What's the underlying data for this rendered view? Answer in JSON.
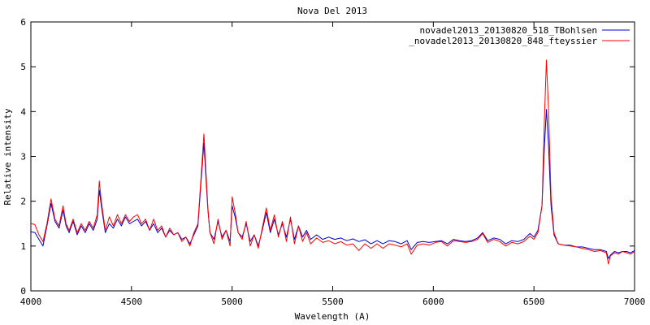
{
  "chart_data": {
    "type": "line",
    "title": "Nova Del 2013",
    "xlabel": "Wavelength (A)",
    "ylabel": "Relative intensity",
    "xlim": [
      4000,
      7000
    ],
    "ylim": [
      0,
      6
    ],
    "xticks": [
      4000,
      4500,
      5000,
      5500,
      6000,
      6500,
      7000
    ],
    "yticks": [
      0,
      1,
      2,
      3,
      4,
      5,
      6
    ],
    "grid": false,
    "legend_position": "top-right",
    "series": [
      {
        "name": "novadel2013_20130820_518_TBohlsen",
        "color": "#0000cc",
        "x": [
          4000,
          4020,
          4040,
          4060,
          4080,
          4100,
          4120,
          4140,
          4160,
          4175,
          4190,
          4210,
          4230,
          4250,
          4270,
          4290,
          4310,
          4330,
          4340,
          4350,
          4370,
          4390,
          4410,
          4430,
          4450,
          4470,
          4490,
          4510,
          4530,
          4550,
          4570,
          4590,
          4610,
          4630,
          4650,
          4670,
          4690,
          4710,
          4730,
          4750,
          4770,
          4790,
          4810,
          4830,
          4845,
          4860,
          4870,
          4880,
          4890,
          4910,
          4930,
          4950,
          4970,
          4990,
          5000,
          5015,
          5030,
          5050,
          5070,
          5090,
          5110,
          5130,
          5150,
          5170,
          5190,
          5210,
          5230,
          5250,
          5270,
          5290,
          5310,
          5330,
          5350,
          5370,
          5390,
          5420,
          5450,
          5480,
          5510,
          5540,
          5570,
          5600,
          5630,
          5660,
          5690,
          5720,
          5750,
          5780,
          5810,
          5840,
          5870,
          5890,
          5920,
          5950,
          5980,
          6010,
          6040,
          6070,
          6100,
          6130,
          6160,
          6190,
          6220,
          6245,
          6270,
          6300,
          6330,
          6360,
          6390,
          6420,
          6450,
          6480,
          6500,
          6520,
          6540,
          6552,
          6562,
          6572,
          6585,
          6600,
          6620,
          6650,
          6680,
          6710,
          6740,
          6770,
          6800,
          6830,
          6860,
          6870,
          6880,
          6900,
          6920,
          6940,
          6960,
          6980,
          7000
        ],
        "values": [
          1.32,
          1.3,
          1.15,
          1.0,
          1.45,
          1.95,
          1.55,
          1.4,
          1.8,
          1.45,
          1.3,
          1.55,
          1.25,
          1.45,
          1.3,
          1.5,
          1.35,
          1.6,
          2.25,
          1.9,
          1.3,
          1.5,
          1.4,
          1.6,
          1.45,
          1.65,
          1.5,
          1.55,
          1.6,
          1.45,
          1.55,
          1.35,
          1.5,
          1.3,
          1.4,
          1.2,
          1.35,
          1.25,
          1.3,
          1.15,
          1.2,
          1.05,
          1.25,
          1.45,
          2.4,
          3.3,
          2.5,
          1.8,
          1.3,
          1.15,
          1.55,
          1.2,
          1.35,
          1.1,
          1.9,
          1.65,
          1.3,
          1.2,
          1.5,
          1.1,
          1.25,
          1.0,
          1.35,
          1.75,
          1.3,
          1.6,
          1.25,
          1.5,
          1.2,
          1.6,
          1.15,
          1.45,
          1.2,
          1.35,
          1.15,
          1.25,
          1.15,
          1.2,
          1.15,
          1.18,
          1.12,
          1.16,
          1.1,
          1.14,
          1.05,
          1.12,
          1.05,
          1.12,
          1.1,
          1.05,
          1.12,
          0.92,
          1.08,
          1.1,
          1.08,
          1.1,
          1.12,
          1.05,
          1.15,
          1.12,
          1.1,
          1.12,
          1.18,
          1.3,
          1.12,
          1.18,
          1.15,
          1.05,
          1.12,
          1.1,
          1.15,
          1.28,
          1.2,
          1.35,
          1.9,
          3.2,
          4.05,
          3.3,
          1.9,
          1.25,
          1.05,
          1.02,
          1.02,
          0.98,
          0.98,
          0.95,
          0.92,
          0.92,
          0.88,
          0.72,
          0.8,
          0.88,
          0.85,
          0.88,
          0.88,
          0.85,
          0.9
        ]
      },
      {
        "name": "_novadel2013_20130820_848_fteyssier",
        "color": "#ff0000",
        "x": [
          4000,
          4020,
          4040,
          4060,
          4080,
          4100,
          4120,
          4140,
          4160,
          4175,
          4190,
          4210,
          4230,
          4250,
          4270,
          4290,
          4310,
          4330,
          4340,
          4350,
          4370,
          4390,
          4410,
          4430,
          4450,
          4470,
          4490,
          4510,
          4530,
          4550,
          4570,
          4590,
          4610,
          4630,
          4650,
          4670,
          4690,
          4710,
          4730,
          4750,
          4770,
          4790,
          4810,
          4830,
          4845,
          4860,
          4870,
          4880,
          4890,
          4910,
          4930,
          4950,
          4970,
          4990,
          5000,
          5015,
          5030,
          5050,
          5070,
          5090,
          5110,
          5130,
          5150,
          5170,
          5190,
          5210,
          5230,
          5250,
          5270,
          5290,
          5310,
          5330,
          5350,
          5370,
          5390,
          5420,
          5450,
          5480,
          5510,
          5540,
          5570,
          5600,
          5630,
          5660,
          5690,
          5720,
          5750,
          5780,
          5810,
          5840,
          5870,
          5890,
          5920,
          5950,
          5980,
          6010,
          6040,
          6070,
          6100,
          6130,
          6160,
          6190,
          6220,
          6245,
          6270,
          6300,
          6330,
          6360,
          6390,
          6420,
          6450,
          6480,
          6500,
          6520,
          6540,
          6552,
          6562,
          6572,
          6585,
          6600,
          6620,
          6650,
          6680,
          6710,
          6740,
          6770,
          6800,
          6830,
          6860,
          6870,
          6880,
          6900,
          6920,
          6940,
          6960,
          6980,
          7000
        ],
        "values": [
          1.5,
          1.48,
          1.25,
          1.1,
          1.5,
          2.05,
          1.6,
          1.45,
          1.9,
          1.5,
          1.35,
          1.6,
          1.3,
          1.5,
          1.35,
          1.55,
          1.4,
          1.7,
          2.45,
          2.0,
          1.35,
          1.65,
          1.45,
          1.7,
          1.5,
          1.7,
          1.55,
          1.65,
          1.7,
          1.5,
          1.6,
          1.35,
          1.6,
          1.35,
          1.45,
          1.2,
          1.4,
          1.25,
          1.3,
          1.1,
          1.2,
          1.0,
          1.3,
          1.5,
          2.5,
          3.5,
          2.65,
          1.85,
          1.3,
          1.05,
          1.6,
          1.15,
          1.35,
          1.0,
          2.1,
          1.75,
          1.3,
          1.15,
          1.55,
          1.0,
          1.25,
          0.95,
          1.4,
          1.85,
          1.35,
          1.7,
          1.2,
          1.55,
          1.1,
          1.65,
          1.05,
          1.45,
          1.1,
          1.3,
          1.05,
          1.18,
          1.08,
          1.12,
          1.05,
          1.1,
          1.02,
          1.05,
          0.9,
          1.05,
          0.95,
          1.05,
          0.95,
          1.05,
          1.02,
          0.98,
          1.05,
          0.82,
          1.02,
          1.05,
          1.02,
          1.08,
          1.1,
          1.0,
          1.12,
          1.1,
          1.08,
          1.1,
          1.15,
          1.28,
          1.08,
          1.15,
          1.1,
          1.0,
          1.08,
          1.05,
          1.1,
          1.22,
          1.15,
          1.3,
          1.9,
          3.8,
          5.15,
          4.1,
          2.1,
          1.3,
          1.05,
          1.02,
          1.0,
          0.98,
          0.95,
          0.92,
          0.88,
          0.9,
          0.85,
          0.6,
          0.78,
          0.85,
          0.82,
          0.88,
          0.85,
          0.82,
          0.88
        ]
      }
    ]
  }
}
